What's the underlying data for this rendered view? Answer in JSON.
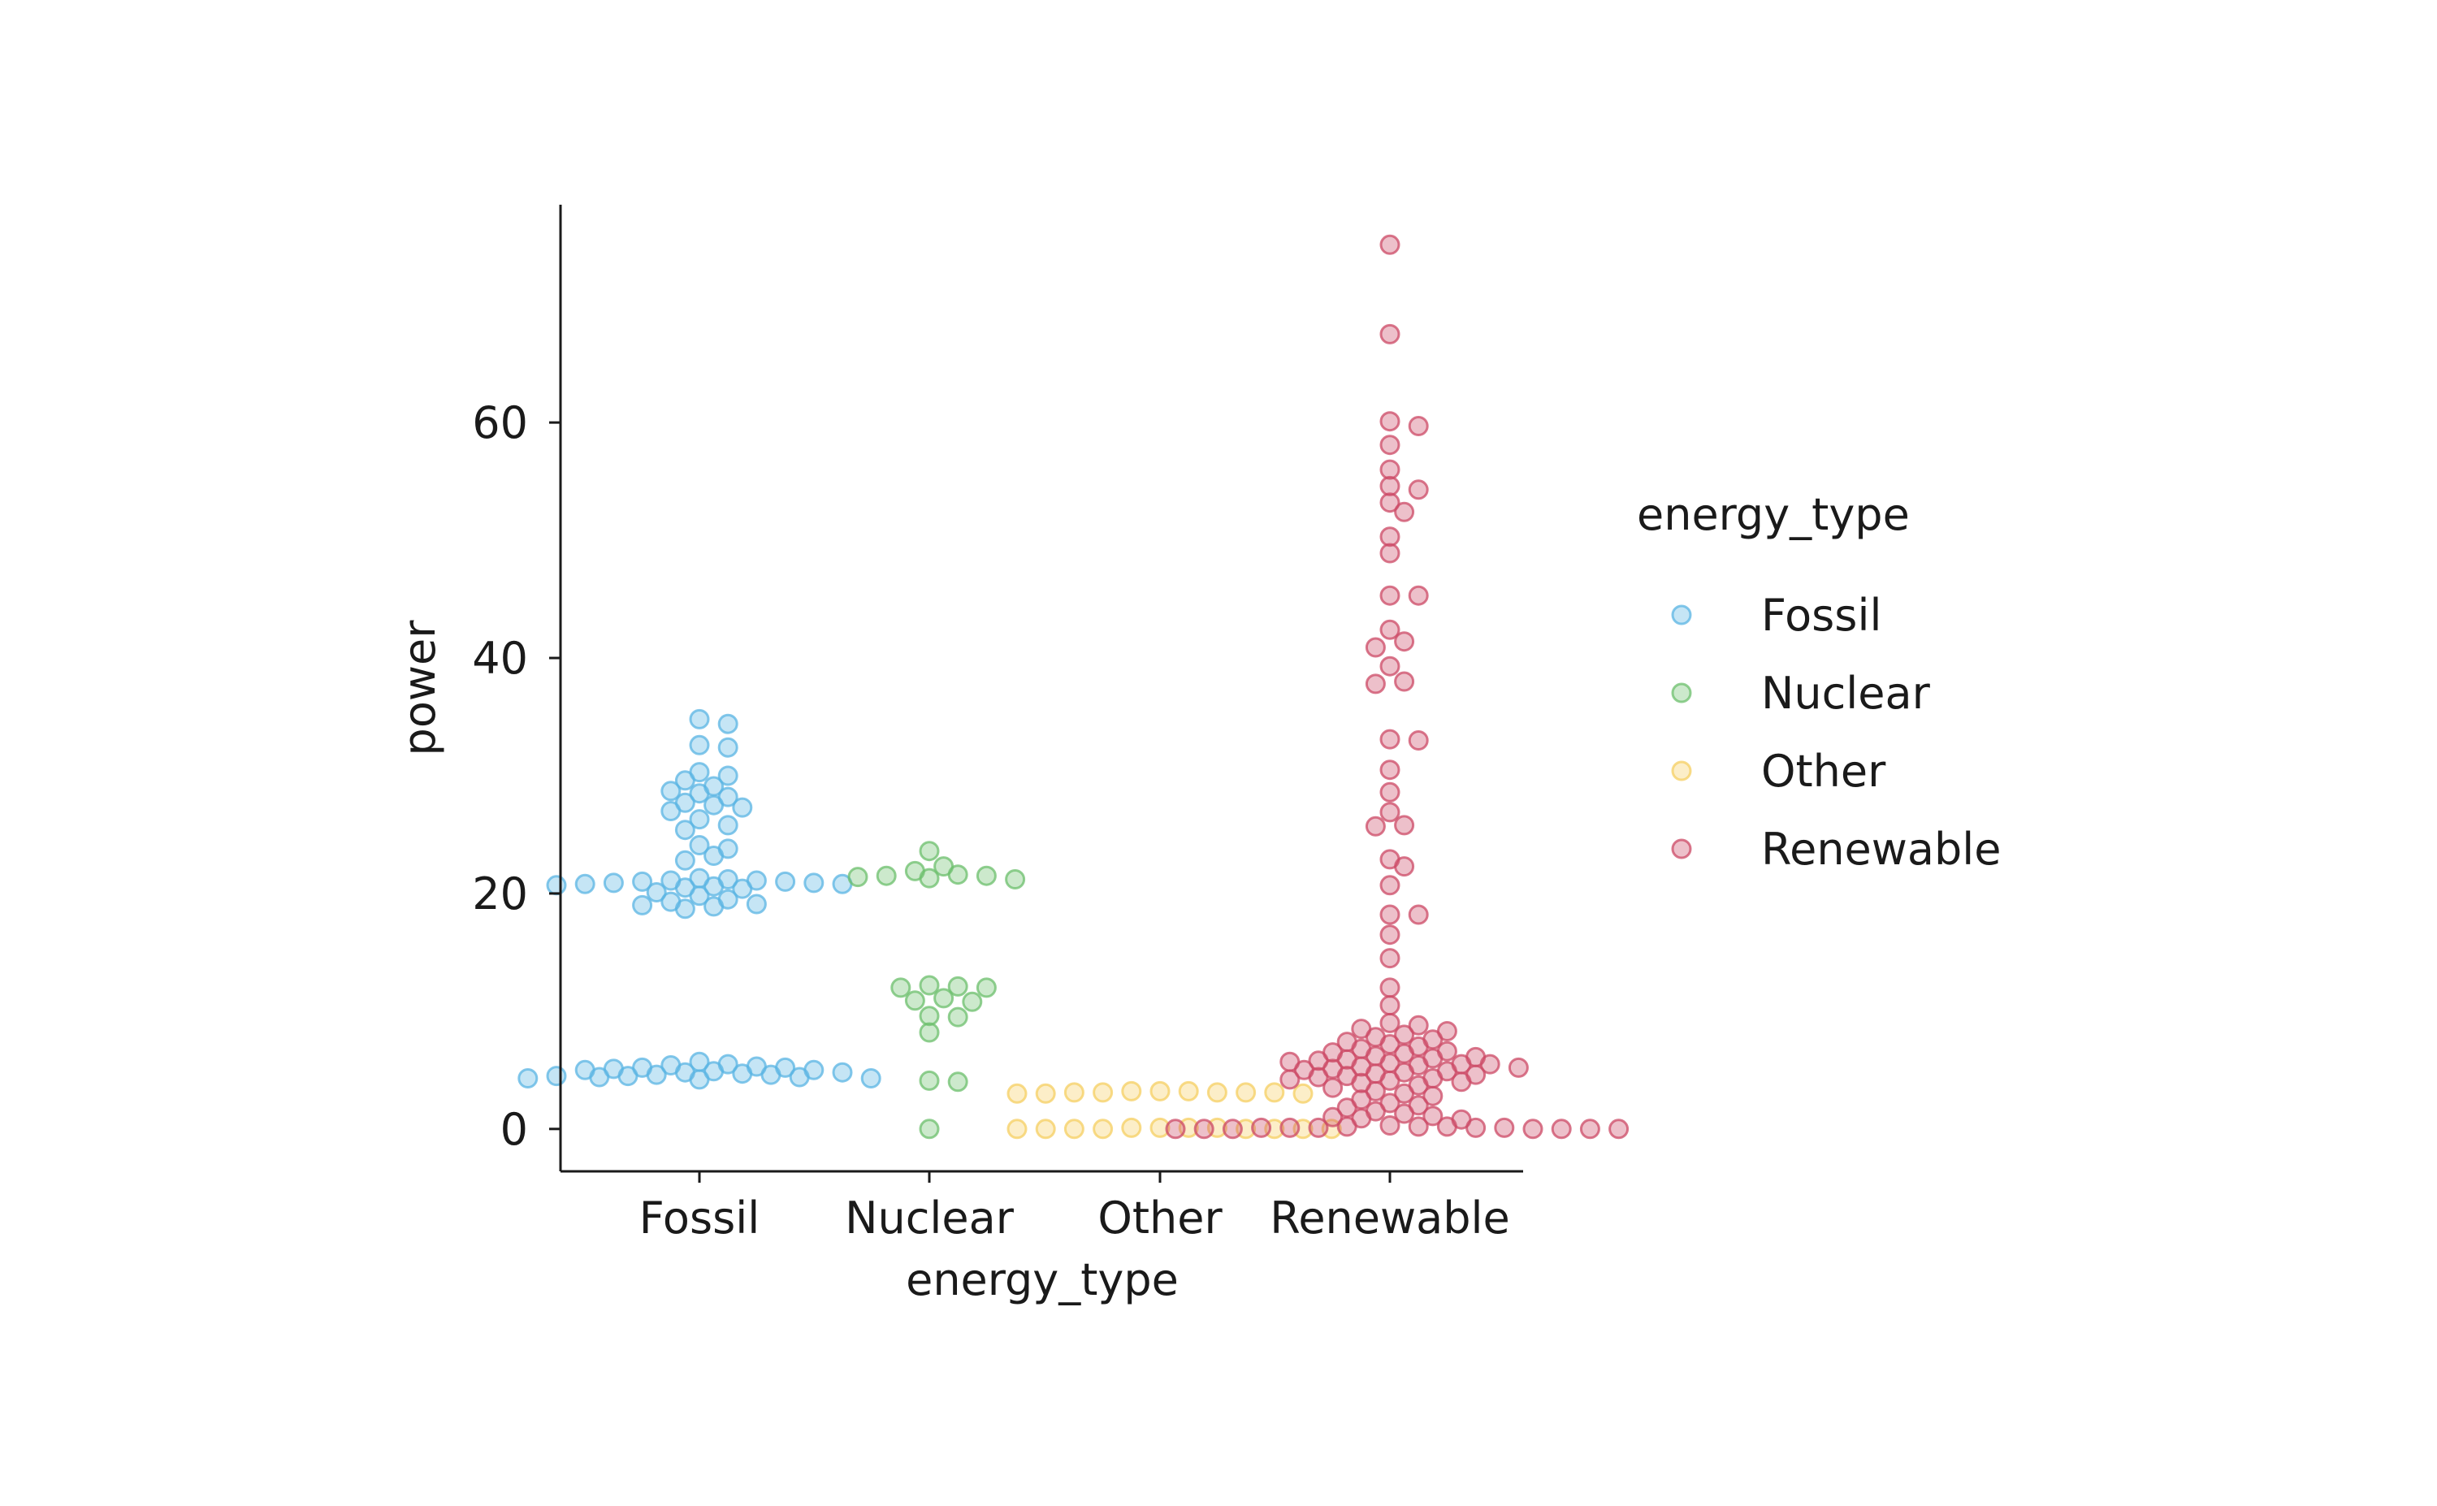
{
  "chart_data": {
    "type": "scatter",
    "subtype": "swarm",
    "title": "",
    "xlabel": "energy_type",
    "ylabel": "power",
    "categories": [
      "Fossil",
      "Nuclear",
      "Other",
      "Renewable"
    ],
    "ylim": [
      -3.6,
      78.5
    ],
    "yticks": [
      0,
      20,
      40,
      60
    ],
    "grid": false,
    "legend": {
      "title": "energy_type",
      "placement": "right",
      "items": [
        "Fossil",
        "Nuclear",
        "Other",
        "Renewable"
      ]
    },
    "series": [
      {
        "name": "Fossil",
        "color": "#5ab4e3",
        "values": [
          4.3,
          4.4,
          4.5,
          4.6,
          4.8,
          5.0,
          5.2,
          5.3,
          5.5,
          5.7,
          4.2,
          4.4,
          4.6,
          4.9,
          5.1,
          5.4,
          4.5,
          4.7,
          4.3,
          5.0,
          5.2,
          4.8,
          18.7,
          18.9,
          19.0,
          19.1,
          19.3,
          19.5,
          19.8,
          20.1,
          20.4,
          20.6,
          20.7,
          20.8,
          20.9,
          21.0,
          21.1,
          21.2,
          21.3,
          20.5,
          20.8,
          21.0,
          21.1,
          20.9,
          22.8,
          23.2,
          23.8,
          24.1,
          25.4,
          25.8,
          26.3,
          27.0,
          27.3,
          27.5,
          27.7,
          28.2,
          28.5,
          28.7,
          29.1,
          29.6,
          30.0,
          30.3,
          32.4,
          32.6,
          34.4,
          34.8
        ]
      },
      {
        "name": "Nuclear",
        "color": "#6cbf6c",
        "values": [
          0.0,
          4.0,
          4.1,
          8.2,
          9.5,
          9.6,
          10.8,
          10.9,
          11.1,
          12.0,
          12.0,
          12.1,
          12.2,
          21.2,
          21.3,
          21.4,
          21.5,
          21.5,
          21.6,
          21.9,
          22.3,
          23.6
        ]
      },
      {
        "name": "Other",
        "color": "#f6cf62",
        "values": [
          0.0,
          0.0,
          0.0,
          0.0,
          0.0,
          0.0,
          0.0,
          0.1,
          0.1,
          0.1,
          0.0,
          0.1,
          3.0,
          3.0,
          3.1,
          3.1,
          3.1,
          3.2,
          3.2,
          3.2,
          3.0,
          3.1,
          3.1
        ]
      },
      {
        "name": "Renewable",
        "color": "#cc4a66",
        "values": [
          0.0,
          0.0,
          0.0,
          0.0,
          0.0,
          0.0,
          0.1,
          0.1,
          0.1,
          0.2,
          0.2,
          0.3,
          0.0,
          0.1,
          0.1,
          0.2,
          0.8,
          0.9,
          1.0,
          1.1,
          1.3,
          1.5,
          1.8,
          2.0,
          2.2,
          2.5,
          2.8,
          3.0,
          3.2,
          3.5,
          3.7,
          3.9,
          4.0,
          4.1,
          4.2,
          4.3,
          4.4,
          4.5,
          4.6,
          4.7,
          4.8,
          4.9,
          5.0,
          5.1,
          5.2,
          5.3,
          5.4,
          5.5,
          5.5,
          5.6,
          5.7,
          5.8,
          5.9,
          6.0,
          6.1,
          6.2,
          6.4,
          6.5,
          6.6,
          6.8,
          7.0,
          7.2,
          7.4,
          7.6,
          7.8,
          8.0,
          8.3,
          8.5,
          8.8,
          9.0,
          10.5,
          12.0,
          14.5,
          16.5,
          18.2,
          18.2,
          20.7,
          22.3,
          22.9,
          25.7,
          25.8,
          26.9,
          28.6,
          30.5,
          33.0,
          33.1,
          37.8,
          38.0,
          39.3,
          40.9,
          41.4,
          42.4,
          45.3,
          45.3,
          48.9,
          50.3,
          52.4,
          53.2,
          54.3,
          54.6,
          56.0,
          58.1,
          59.7,
          60.1,
          67.5,
          75.1
        ]
      }
    ]
  }
}
